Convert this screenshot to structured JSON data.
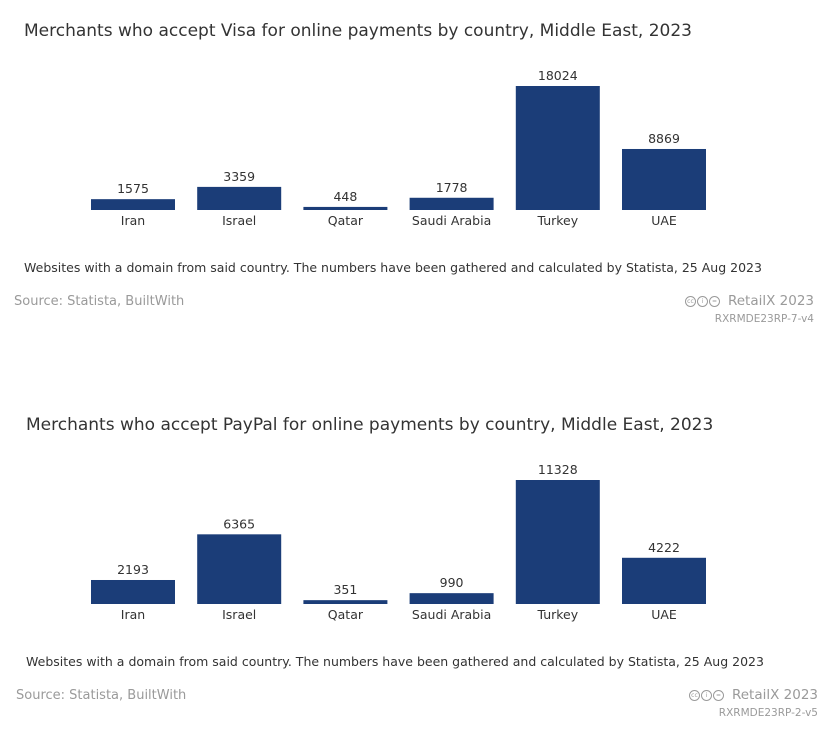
{
  "chart_data": [
    {
      "type": "bar",
      "title": "Merchants who accept Visa for online payments by country, Middle East, 2023",
      "categories": [
        "Iran",
        "Israel",
        "Qatar",
        "Saudi Arabia",
        "Turkey",
        "UAE"
      ],
      "values": [
        1575,
        3359,
        448,
        1778,
        18024,
        8869
      ],
      "xlabel": "",
      "ylabel": "",
      "ylim": [
        0,
        18024
      ],
      "grid": false,
      "bar_color": "#1b3d78",
      "data_labels": true
    },
    {
      "type": "bar",
      "title": "Merchants who accept PayPal for online payments by country, Middle East, 2023",
      "categories": [
        "Iran",
        "Israel",
        "Qatar",
        "Saudi Arabia",
        "Turkey",
        "UAE"
      ],
      "values": [
        2193,
        6365,
        351,
        990,
        11328,
        4222
      ],
      "xlabel": "",
      "ylabel": "",
      "ylim": [
        0,
        11328
      ],
      "grid": false,
      "bar_color": "#1b3d78",
      "data_labels": true
    }
  ],
  "panels": [
    {
      "footnote": "Websites with a domain from said country. The numbers have been gathered and calculated by Statista, 25 Aug 2023",
      "source": "Source: Statista, BuiltWith",
      "brand": "RetailX 2023",
      "report_id": "RXRMDE23RP-7-v4"
    },
    {
      "footnote": "Websites with a domain from said country. The numbers have been gathered and calculated by Statista, 25 Aug 2023",
      "source": "Source: Statista, BuiltWith",
      "brand": "RetailX 2023",
      "report_id": "RXRMDE23RP-2-v5"
    }
  ],
  "license_icons": [
    "cc-icon",
    "by-icon",
    "nd-icon"
  ]
}
